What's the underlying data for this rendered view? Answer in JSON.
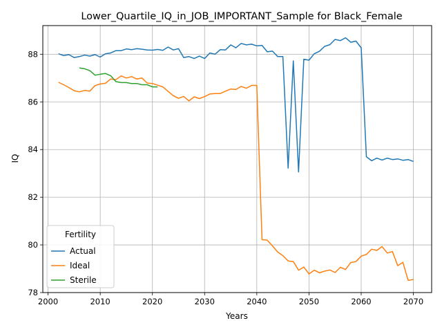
{
  "chart_data": {
    "type": "line",
    "title": "Lower_Quartile_IQ_in_JOB_IMPORTANT_Sample for Black_Female",
    "xlabel": "Years",
    "ylabel": "IQ",
    "xlim": [
      1999,
      2073.5
    ],
    "ylim": [
      78,
      89.2
    ],
    "xticks": [
      2000,
      2010,
      2020,
      2030,
      2040,
      2050,
      2060,
      2070
    ],
    "yticks": [
      78,
      80,
      82,
      84,
      86,
      88
    ],
    "grid": true,
    "legend": {
      "title": "Fertility",
      "placement": "lower-left"
    },
    "series": [
      {
        "name": "Actual",
        "color": "#1f77b4",
        "x": [
          2002,
          2003,
          2004,
          2005,
          2006,
          2007,
          2008,
          2009,
          2010,
          2011,
          2012,
          2013,
          2014,
          2015,
          2016,
          2017,
          2018,
          2019,
          2020,
          2021,
          2022,
          2023,
          2024,
          2025,
          2026,
          2027,
          2028,
          2029,
          2030,
          2031,
          2032,
          2033,
          2034,
          2035,
          2036,
          2037,
          2038,
          2039,
          2040,
          2041,
          2042,
          2043,
          2044,
          2045,
          2046,
          2047,
          2048,
          2049,
          2050,
          2051,
          2052,
          2053,
          2054,
          2055,
          2056,
          2057,
          2058,
          2059,
          2060,
          2061,
          2062,
          2063,
          2064,
          2065,
          2066,
          2067,
          2068,
          2069,
          2070
        ],
        "values": [
          88.02,
          87.94,
          87.98,
          87.86,
          87.9,
          87.96,
          87.92,
          87.98,
          87.88,
          88.02,
          88.05,
          88.15,
          88.15,
          88.22,
          88.19,
          88.23,
          88.21,
          88.18,
          88.17,
          88.2,
          88.16,
          88.3,
          88.18,
          88.23,
          87.86,
          87.9,
          87.82,
          87.92,
          87.82,
          88.05,
          88.0,
          88.19,
          88.18,
          88.39,
          88.27,
          88.45,
          88.39,
          88.42,
          88.35,
          88.37,
          88.1,
          88.13,
          87.9,
          87.9,
          83.22,
          87.72,
          83.06,
          87.79,
          87.75,
          88.02,
          88.12,
          88.33,
          88.4,
          88.62,
          88.57,
          88.69,
          88.5,
          88.55,
          88.27,
          83.7,
          83.53,
          83.64,
          83.56,
          83.64,
          83.58,
          83.61,
          83.55,
          83.58,
          83.5
        ]
      },
      {
        "name": "Ideal",
        "color": "#ff7f0e",
        "x": [
          2002,
          2003,
          2004,
          2005,
          2006,
          2007,
          2008,
          2009,
          2010,
          2011,
          2012,
          2013,
          2014,
          2015,
          2016,
          2017,
          2018,
          2019,
          2020,
          2021,
          2022,
          2023,
          2024,
          2025,
          2026,
          2027,
          2028,
          2029,
          2030,
          2031,
          2032,
          2033,
          2034,
          2035,
          2036,
          2037,
          2038,
          2039,
          2040,
          2041,
          2042,
          2043,
          2044,
          2045,
          2046,
          2047,
          2048,
          2049,
          2050,
          2051,
          2052,
          2053,
          2054,
          2055,
          2056,
          2057,
          2058,
          2059,
          2060,
          2061,
          2062,
          2063,
          2064,
          2065,
          2066,
          2067,
          2068,
          2069,
          2070
        ],
        "values": [
          86.82,
          86.72,
          86.6,
          86.47,
          86.42,
          86.48,
          86.45,
          86.68,
          86.75,
          86.78,
          86.96,
          86.93,
          87.09,
          87.0,
          87.06,
          86.96,
          87.0,
          86.79,
          86.77,
          86.7,
          86.63,
          86.44,
          86.26,
          86.15,
          86.23,
          86.04,
          86.21,
          86.14,
          86.22,
          86.33,
          86.35,
          86.35,
          86.45,
          86.54,
          86.52,
          86.65,
          86.57,
          86.69,
          86.69,
          80.22,
          80.2,
          79.96,
          79.7,
          79.55,
          79.33,
          79.3,
          78.94,
          79.07,
          78.78,
          78.94,
          78.83,
          78.9,
          78.95,
          78.84,
          79.06,
          78.97,
          79.26,
          79.3,
          79.53,
          79.6,
          79.82,
          79.77,
          79.93,
          79.66,
          79.72,
          79.13,
          79.27,
          78.51,
          78.55
        ]
      },
      {
        "name": "Sterile",
        "color": "#2ca02c",
        "x": [
          2006,
          2007,
          2008,
          2009,
          2010,
          2011,
          2012,
          2013,
          2014,
          2015,
          2016,
          2017,
          2018,
          2019,
          2020,
          2021
        ],
        "values": [
          87.42,
          87.39,
          87.31,
          87.12,
          87.16,
          87.19,
          87.1,
          86.85,
          86.81,
          86.81,
          86.77,
          86.77,
          86.72,
          86.72,
          86.63,
          86.63
        ]
      }
    ]
  }
}
